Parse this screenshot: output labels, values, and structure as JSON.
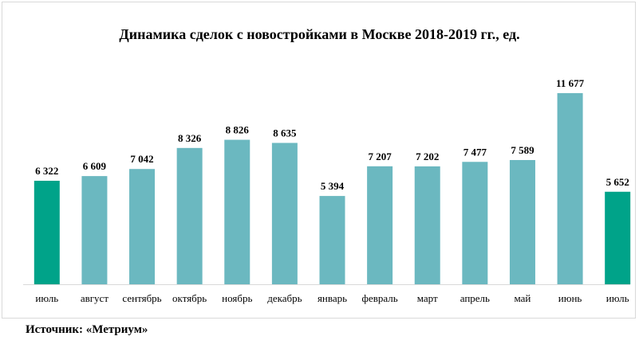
{
  "chart_data": {
    "type": "bar",
    "title": "Динамика сделок с новостройками в Москве 2018-2019 гг., ед.",
    "xlabel": "",
    "ylabel": "",
    "ylim": [
      0,
      12500
    ],
    "grid": false,
    "legend": "none",
    "categories": [
      "июль",
      "август",
      "сентябрь",
      "октябрь",
      "ноябрь",
      "декабрь",
      "январь",
      "февраль",
      "март",
      "апрель",
      "май",
      "июнь",
      "июль"
    ],
    "values": [
      6322,
      6609,
      7042,
      8326,
      8826,
      8635,
      5394,
      7207,
      7202,
      7477,
      7589,
      11677,
      5652
    ],
    "value_labels": [
      "6 322",
      "6 609",
      "7 042",
      "8 326",
      "8 826",
      "8 635",
      "5 394",
      "7 207",
      "7 202",
      "7 477",
      "7 589",
      "11 677",
      "5 652"
    ],
    "bar_colors": [
      "#00a389",
      "#6bb8c0",
      "#6bb8c0",
      "#6bb8c0",
      "#6bb8c0",
      "#6bb8c0",
      "#6bb8c0",
      "#6bb8c0",
      "#6bb8c0",
      "#6bb8c0",
      "#6bb8c0",
      "#6bb8c0",
      "#00a389"
    ]
  },
  "source": "Источник: «Метриум»"
}
